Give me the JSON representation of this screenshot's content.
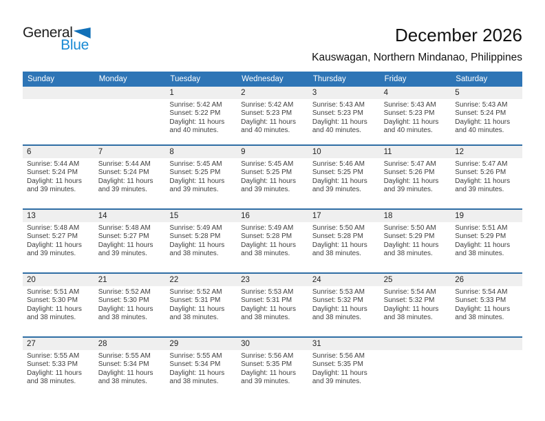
{
  "logo": {
    "word_top": "General",
    "word_bottom": "Blue"
  },
  "header": {
    "title": "December 2026",
    "subtitle": "Kauswagan, Northern Mindanao, Philippines"
  },
  "colors": {
    "weekday_header_bg": "#2E75B6",
    "weekday_header_text": "#FFFFFF",
    "week_separator_line": "#2E6DA4",
    "day_number_band_bg": "#EFEFEF",
    "logo_blue": "#1789D4",
    "logo_triangle": "#1170B8",
    "body_text": "#3D3D3D"
  },
  "labels": {
    "sunrise": "Sunrise:",
    "sunset": "Sunset:",
    "daylight": "Daylight:"
  },
  "calendar": {
    "weekdays": [
      "Sunday",
      "Monday",
      "Tuesday",
      "Wednesday",
      "Thursday",
      "Friday",
      "Saturday"
    ],
    "weeks": [
      [
        null,
        null,
        {
          "day": "1",
          "sunrise": "5:42 AM",
          "sunset": "5:22 PM",
          "daylight": "11 hours and 40 minutes."
        },
        {
          "day": "2",
          "sunrise": "5:42 AM",
          "sunset": "5:23 PM",
          "daylight": "11 hours and 40 minutes."
        },
        {
          "day": "3",
          "sunrise": "5:43 AM",
          "sunset": "5:23 PM",
          "daylight": "11 hours and 40 minutes."
        },
        {
          "day": "4",
          "sunrise": "5:43 AM",
          "sunset": "5:23 PM",
          "daylight": "11 hours and 40 minutes."
        },
        {
          "day": "5",
          "sunrise": "5:43 AM",
          "sunset": "5:24 PM",
          "daylight": "11 hours and 40 minutes."
        }
      ],
      [
        {
          "day": "6",
          "sunrise": "5:44 AM",
          "sunset": "5:24 PM",
          "daylight": "11 hours and 39 minutes."
        },
        {
          "day": "7",
          "sunrise": "5:44 AM",
          "sunset": "5:24 PM",
          "daylight": "11 hours and 39 minutes."
        },
        {
          "day": "8",
          "sunrise": "5:45 AM",
          "sunset": "5:25 PM",
          "daylight": "11 hours and 39 minutes."
        },
        {
          "day": "9",
          "sunrise": "5:45 AM",
          "sunset": "5:25 PM",
          "daylight": "11 hours and 39 minutes."
        },
        {
          "day": "10",
          "sunrise": "5:46 AM",
          "sunset": "5:25 PM",
          "daylight": "11 hours and 39 minutes."
        },
        {
          "day": "11",
          "sunrise": "5:47 AM",
          "sunset": "5:26 PM",
          "daylight": "11 hours and 39 minutes."
        },
        {
          "day": "12",
          "sunrise": "5:47 AM",
          "sunset": "5:26 PM",
          "daylight": "11 hours and 39 minutes."
        }
      ],
      [
        {
          "day": "13",
          "sunrise": "5:48 AM",
          "sunset": "5:27 PM",
          "daylight": "11 hours and 39 minutes."
        },
        {
          "day": "14",
          "sunrise": "5:48 AM",
          "sunset": "5:27 PM",
          "daylight": "11 hours and 39 minutes."
        },
        {
          "day": "15",
          "sunrise": "5:49 AM",
          "sunset": "5:28 PM",
          "daylight": "11 hours and 38 minutes."
        },
        {
          "day": "16",
          "sunrise": "5:49 AM",
          "sunset": "5:28 PM",
          "daylight": "11 hours and 38 minutes."
        },
        {
          "day": "17",
          "sunrise": "5:50 AM",
          "sunset": "5:28 PM",
          "daylight": "11 hours and 38 minutes."
        },
        {
          "day": "18",
          "sunrise": "5:50 AM",
          "sunset": "5:29 PM",
          "daylight": "11 hours and 38 minutes."
        },
        {
          "day": "19",
          "sunrise": "5:51 AM",
          "sunset": "5:29 PM",
          "daylight": "11 hours and 38 minutes."
        }
      ],
      [
        {
          "day": "20",
          "sunrise": "5:51 AM",
          "sunset": "5:30 PM",
          "daylight": "11 hours and 38 minutes."
        },
        {
          "day": "21",
          "sunrise": "5:52 AM",
          "sunset": "5:30 PM",
          "daylight": "11 hours and 38 minutes."
        },
        {
          "day": "22",
          "sunrise": "5:52 AM",
          "sunset": "5:31 PM",
          "daylight": "11 hours and 38 minutes."
        },
        {
          "day": "23",
          "sunrise": "5:53 AM",
          "sunset": "5:31 PM",
          "daylight": "11 hours and 38 minutes."
        },
        {
          "day": "24",
          "sunrise": "5:53 AM",
          "sunset": "5:32 PM",
          "daylight": "11 hours and 38 minutes."
        },
        {
          "day": "25",
          "sunrise": "5:54 AM",
          "sunset": "5:32 PM",
          "daylight": "11 hours and 38 minutes."
        },
        {
          "day": "26",
          "sunrise": "5:54 AM",
          "sunset": "5:33 PM",
          "daylight": "11 hours and 38 minutes."
        }
      ],
      [
        {
          "day": "27",
          "sunrise": "5:55 AM",
          "sunset": "5:33 PM",
          "daylight": "11 hours and 38 minutes."
        },
        {
          "day": "28",
          "sunrise": "5:55 AM",
          "sunset": "5:34 PM",
          "daylight": "11 hours and 38 minutes."
        },
        {
          "day": "29",
          "sunrise": "5:55 AM",
          "sunset": "5:34 PM",
          "daylight": "11 hours and 38 minutes."
        },
        {
          "day": "30",
          "sunrise": "5:56 AM",
          "sunset": "5:35 PM",
          "daylight": "11 hours and 39 minutes."
        },
        {
          "day": "31",
          "sunrise": "5:56 AM",
          "sunset": "5:35 PM",
          "daylight": "11 hours and 39 minutes."
        },
        null,
        null
      ]
    ]
  }
}
